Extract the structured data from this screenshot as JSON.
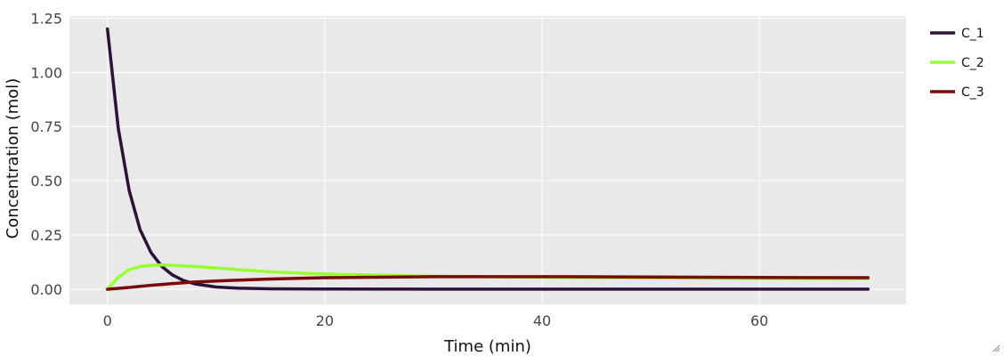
{
  "chart_data": {
    "type": "line",
    "title": "",
    "xlabel": "Time (min)",
    "ylabel": "Concentration (mol)",
    "xlim": [
      -3.5,
      73.5
    ],
    "ylim": [
      -0.07,
      1.26
    ],
    "xticks": [
      0,
      20,
      40,
      60
    ],
    "xtick_labels": [
      "0",
      "20",
      "40",
      "60"
    ],
    "yticks": [
      0,
      0.25,
      0.5,
      0.75,
      1.0,
      1.25
    ],
    "ytick_labels": [
      "0.00",
      "0.25",
      "0.50",
      "0.75",
      "1.00",
      "1.25"
    ],
    "grid": true,
    "legend_position": "right",
    "background": "#e9e9e9",
    "series": [
      {
        "name": "C_1",
        "color": "#2a1238",
        "x": [
          0,
          1,
          2,
          3,
          4,
          5,
          6,
          7,
          8,
          10,
          12,
          15,
          20,
          30,
          40,
          50,
          60,
          70
        ],
        "y": [
          1.2,
          0.74,
          0.455,
          0.275,
          0.17,
          0.105,
          0.065,
          0.04,
          0.025,
          0.01,
          0.005,
          0.002,
          0.001,
          0.0005,
          0.0003,
          0.0002,
          0.0001,
          0.0001
        ]
      },
      {
        "name": "C_2",
        "color": "#99ff33",
        "x": [
          0,
          1,
          2,
          3,
          4,
          5,
          6,
          8,
          10,
          15,
          20,
          30,
          40,
          50,
          60,
          70
        ],
        "y": [
          0.0,
          0.055,
          0.09,
          0.105,
          0.11,
          0.112,
          0.11,
          0.105,
          0.098,
          0.08,
          0.07,
          0.06,
          0.055,
          0.052,
          0.05,
          0.048
        ]
      },
      {
        "name": "C_3",
        "color": "#7a0a0a",
        "x": [
          0,
          1,
          2,
          3,
          4,
          5,
          6,
          8,
          10,
          15,
          20,
          30,
          40,
          50,
          60,
          70
        ],
        "y": [
          0.0,
          0.004,
          0.008,
          0.013,
          0.018,
          0.022,
          0.026,
          0.033,
          0.038,
          0.047,
          0.053,
          0.058,
          0.058,
          0.056,
          0.054,
          0.053
        ]
      }
    ]
  }
}
